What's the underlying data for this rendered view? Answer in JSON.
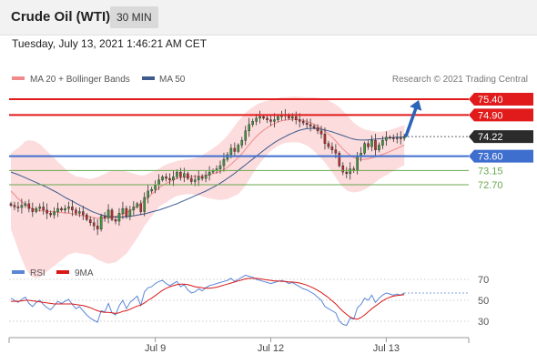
{
  "header": {
    "title": "Crude Oil (WTI)",
    "timeframe": "30 MIN"
  },
  "datetime": "Tuesday, July 13, 2021 1:46:21 AM CET",
  "legend": {
    "ma_bb": "MA 20 + Bollinger Bands",
    "ma50": "MA 50",
    "rsi": "RSI",
    "rsi_ma": "9MA"
  },
  "credit": "Research © 2021 Trading Central",
  "colors": {
    "resistance": "#e11b1b",
    "pivot": "#3f6fce",
    "support": "#6aa84f",
    "current": "#2b2b2b",
    "bollinger": "#fbd0d0",
    "ma20": "#f08a8a",
    "ma50": "#3d5b8f",
    "arrow": "#2a63b7",
    "rsi": "#5b86d6",
    "rsi_ma": "#d81818",
    "candle_up": "#3f9a3f",
    "candle_down": "#b93030"
  },
  "chart_data": [
    {
      "type": "candlestick",
      "y_scale": {
        "at_75_40": 75.4,
        "at_72_70": 72.7
      },
      "x_ticks": [
        {
          "label": "Jul 9",
          "index": 40
        },
        {
          "label": "Jul 12",
          "index": 72
        },
        {
          "label": "Jul 13",
          "index": 104
        }
      ],
      "index_range": [
        0,
        115
      ],
      "levels": [
        {
          "value": 75.4,
          "label": "75.40",
          "kind": "resistance"
        },
        {
          "value": 74.9,
          "label": "74.90",
          "kind": "resistance"
        },
        {
          "value": 74.22,
          "label": "74.22",
          "kind": "current"
        },
        {
          "value": 73.6,
          "label": "73.60",
          "kind": "pivot"
        },
        {
          "value": 73.15,
          "label": "73.15",
          "kind": "support"
        },
        {
          "value": 72.7,
          "label": "72.70",
          "kind": "support"
        }
      ],
      "close": [
        72.05,
        72.0,
        71.98,
        72.05,
        72.1,
        71.95,
        71.85,
        71.95,
        72.0,
        71.9,
        71.8,
        71.75,
        71.85,
        71.95,
        71.9,
        71.95,
        72.0,
        71.9,
        71.8,
        71.85,
        71.75,
        71.6,
        71.5,
        71.4,
        71.3,
        71.7,
        71.65,
        71.9,
        71.6,
        71.55,
        71.8,
        71.95,
        71.7,
        71.9,
        72.0,
        72.1,
        71.85,
        72.3,
        72.5,
        72.55,
        72.7,
        72.85,
        72.95,
        72.9,
        72.85,
        72.95,
        73.1,
        72.95,
        73.05,
        72.9,
        72.8,
        72.85,
        72.95,
        72.9,
        73.0,
        73.1,
        73.15,
        73.2,
        73.3,
        73.5,
        73.65,
        73.85,
        73.75,
        73.95,
        74.1,
        74.4,
        74.6,
        74.7,
        74.8,
        74.85,
        74.8,
        74.75,
        74.7,
        74.75,
        74.85,
        74.9,
        74.9,
        74.8,
        74.85,
        74.75,
        74.7,
        74.65,
        74.6,
        74.55,
        74.5,
        74.4,
        74.3,
        74.0,
        73.9,
        73.8,
        73.7,
        73.3,
        73.1,
        73.05,
        73.2,
        73.15,
        73.6,
        73.7,
        74.0,
        73.9,
        74.1,
        73.8,
        73.95,
        74.1,
        74.2,
        74.18,
        74.15,
        74.18,
        74.16,
        74.22
      ],
      "ma20": [
        72.5,
        72.38,
        72.26,
        72.16,
        72.08,
        72.0,
        71.94,
        71.9,
        71.88,
        71.87,
        71.86,
        71.85,
        71.84,
        71.83,
        71.82,
        71.81,
        71.8,
        71.78,
        71.76,
        71.74,
        71.72,
        71.7,
        71.68,
        71.66,
        71.64,
        71.64,
        71.64,
        71.66,
        71.68,
        71.7,
        71.74,
        71.78,
        71.82,
        71.88,
        71.95,
        72.02,
        72.1,
        72.2,
        72.3,
        72.4,
        72.5,
        72.6,
        72.68,
        72.74,
        72.8,
        72.85,
        72.9,
        72.92,
        72.94,
        72.95,
        72.96,
        72.96,
        72.97,
        72.98,
        73.0,
        73.02,
        73.05,
        73.08,
        73.12,
        73.18,
        73.25,
        73.35,
        73.45,
        73.56,
        73.68,
        73.82,
        73.96,
        74.1,
        74.22,
        74.33,
        74.42,
        74.5,
        74.57,
        74.63,
        74.68,
        74.72,
        74.74,
        74.75,
        74.76,
        74.76,
        74.75,
        74.73,
        74.7,
        74.66,
        74.61,
        74.55,
        74.48,
        74.4,
        74.3,
        74.2,
        74.08,
        73.95,
        73.83,
        73.72,
        73.63,
        73.56,
        73.52,
        73.5,
        73.5,
        73.52,
        73.55,
        73.58,
        73.62,
        73.66,
        73.7,
        73.75,
        73.8,
        73.85,
        73.9,
        73.95
      ],
      "bb_width": [
        1.2,
        1.4,
        1.6,
        1.8,
        2.0,
        2.1,
        2.15,
        2.15,
        2.1,
        2.0,
        1.9,
        1.8,
        1.7,
        1.6,
        1.5,
        1.4,
        1.3,
        1.25,
        1.2,
        1.2,
        1.2,
        1.2,
        1.2,
        1.25,
        1.3,
        1.35,
        1.4,
        1.45,
        1.45,
        1.45,
        1.4,
        1.35,
        1.3,
        1.2,
        1.1,
        1.0,
        0.9,
        0.8,
        0.75,
        0.7,
        0.65,
        0.6,
        0.6,
        0.6,
        0.58,
        0.56,
        0.55,
        0.55,
        0.55,
        0.55,
        0.56,
        0.58,
        0.6,
        0.65,
        0.7,
        0.75,
        0.8,
        0.85,
        0.9,
        0.95,
        1.0,
        1.05,
        1.1,
        1.15,
        1.15,
        1.15,
        1.1,
        1.05,
        1.0,
        0.95,
        0.9,
        0.85,
        0.8,
        0.78,
        0.76,
        0.74,
        0.72,
        0.72,
        0.72,
        0.72,
        0.72,
        0.74,
        0.76,
        0.8,
        0.85,
        0.9,
        0.95,
        1.0,
        1.05,
        1.1,
        1.15,
        1.2,
        1.2,
        1.2,
        1.15,
        1.1,
        1.05,
        1.0,
        0.95,
        0.9,
        0.85,
        0.8,
        0.75,
        0.72,
        0.7,
        0.68,
        0.66,
        0.65,
        0.64,
        0.63
      ],
      "ma50": [
        73.1,
        73.06,
        73.02,
        72.97,
        72.92,
        72.87,
        72.82,
        72.77,
        72.72,
        72.67,
        72.62,
        72.56,
        72.5,
        72.44,
        72.37,
        72.3,
        72.24,
        72.18,
        72.12,
        72.06,
        72.0,
        71.94,
        71.88,
        71.83,
        71.79,
        71.75,
        71.72,
        71.7,
        71.69,
        71.68,
        71.68,
        71.68,
        71.69,
        71.7,
        71.72,
        71.74,
        71.76,
        71.78,
        71.81,
        71.84,
        71.87,
        71.9,
        71.94,
        71.98,
        72.02,
        72.06,
        72.1,
        72.15,
        72.2,
        72.25,
        72.3,
        72.35,
        72.4,
        72.45,
        72.5,
        72.56,
        72.62,
        72.68,
        72.75,
        72.82,
        72.9,
        72.98,
        73.06,
        73.15,
        73.24,
        73.33,
        73.42,
        73.51,
        73.6,
        73.69,
        73.78,
        73.87,
        73.95,
        74.03,
        74.1,
        74.16,
        74.22,
        74.28,
        74.33,
        74.38,
        74.42,
        74.45,
        74.47,
        74.48,
        74.48,
        74.47,
        74.45,
        74.43,
        74.4,
        74.37,
        74.33,
        74.29,
        74.25,
        74.21,
        74.17,
        74.14,
        74.12,
        74.11,
        74.11,
        74.12,
        74.13,
        74.14,
        74.15,
        74.16,
        74.17,
        74.18,
        74.19,
        74.2,
        74.2,
        74.21
      ],
      "arrow_target": {
        "index": 113,
        "value": 75.4
      }
    },
    {
      "type": "line",
      "ylim": [
        10,
        90
      ],
      "y_ticks": [
        30,
        50,
        70
      ],
      "series": [
        {
          "name": "RSI",
          "values": [
            52,
            50,
            48,
            51,
            53,
            47,
            44,
            48,
            50,
            46,
            43,
            41,
            45,
            49,
            47,
            49,
            51,
            46,
            42,
            44,
            40,
            36,
            33,
            31,
            29,
            40,
            39,
            47,
            38,
            36,
            45,
            50,
            42,
            48,
            51,
            54,
            45,
            58,
            62,
            63,
            66,
            68,
            69,
            66,
            64,
            66,
            68,
            63,
            65,
            60,
            57,
            58,
            61,
            59,
            62,
            64,
            65,
            66,
            67,
            68,
            69,
            71,
            68,
            70,
            72,
            74,
            73,
            72,
            70,
            69,
            68,
            67,
            66,
            67,
            68,
            69,
            68,
            66,
            67,
            65,
            63,
            61,
            60,
            58,
            56,
            53,
            50,
            44,
            42,
            40,
            38,
            30,
            27,
            26,
            33,
            32,
            43,
            46,
            52,
            50,
            55,
            48,
            52,
            55,
            57,
            56,
            55,
            56,
            55,
            57
          ]
        },
        {
          "name": "9MA",
          "values": [
            49,
            49,
            49,
            49.5,
            50,
            50,
            49.5,
            49,
            48.5,
            48,
            47.5,
            47,
            46.5,
            46.5,
            46.5,
            46.5,
            46.5,
            46.5,
            46,
            45.5,
            45,
            44,
            43,
            41.5,
            40,
            39,
            38.5,
            38.5,
            38,
            37.5,
            38,
            39.5,
            40,
            41.5,
            43,
            44.5,
            45.5,
            47.5,
            50,
            52,
            54.5,
            57,
            59.5,
            61.5,
            63,
            64,
            65,
            65.5,
            65.5,
            65,
            64,
            63,
            62.5,
            62,
            61.5,
            61.5,
            62,
            62.5,
            63.5,
            64.5,
            65.5,
            66.5,
            67.5,
            68.5,
            69.5,
            70.5,
            71,
            71,
            71,
            70.5,
            70,
            69.5,
            69,
            68.5,
            68.5,
            68,
            68,
            67.5,
            67.5,
            67,
            66.5,
            65.5,
            64.5,
            63,
            61.5,
            59.5,
            57.5,
            55,
            52.5,
            49.5,
            46.5,
            43,
            39.5,
            36.5,
            34,
            32.5,
            32,
            33.5,
            36,
            39,
            42,
            44.5,
            47,
            49.5,
            51.5,
            53,
            54,
            54.5,
            55,
            55.5
          ]
        }
      ]
    }
  ]
}
